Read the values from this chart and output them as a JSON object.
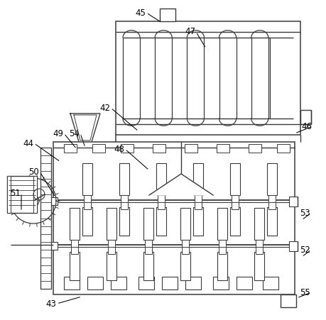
{
  "background_color": "#ffffff",
  "line_color": "#3a3a3a",
  "lw": 1.0,
  "annotations": [
    [
      "42",
      148,
      152,
      195,
      185
    ],
    [
      "43",
      72,
      428,
      115,
      418
    ],
    [
      "44",
      40,
      202,
      85,
      228
    ],
    [
      "45",
      198,
      18,
      228,
      32
    ],
    [
      "46",
      432,
      178,
      415,
      188
    ],
    [
      "47",
      268,
      45,
      290,
      68
    ],
    [
      "48",
      168,
      210,
      210,
      240
    ],
    [
      "49",
      82,
      188,
      108,
      210
    ],
    [
      "50",
      48,
      242,
      78,
      278
    ],
    [
      "51",
      22,
      272,
      30,
      298
    ],
    [
      "52",
      430,
      352,
      425,
      362
    ],
    [
      "53",
      430,
      300,
      425,
      310
    ],
    [
      "54",
      105,
      188,
      120,
      208
    ],
    [
      "55",
      430,
      412,
      418,
      420
    ]
  ]
}
